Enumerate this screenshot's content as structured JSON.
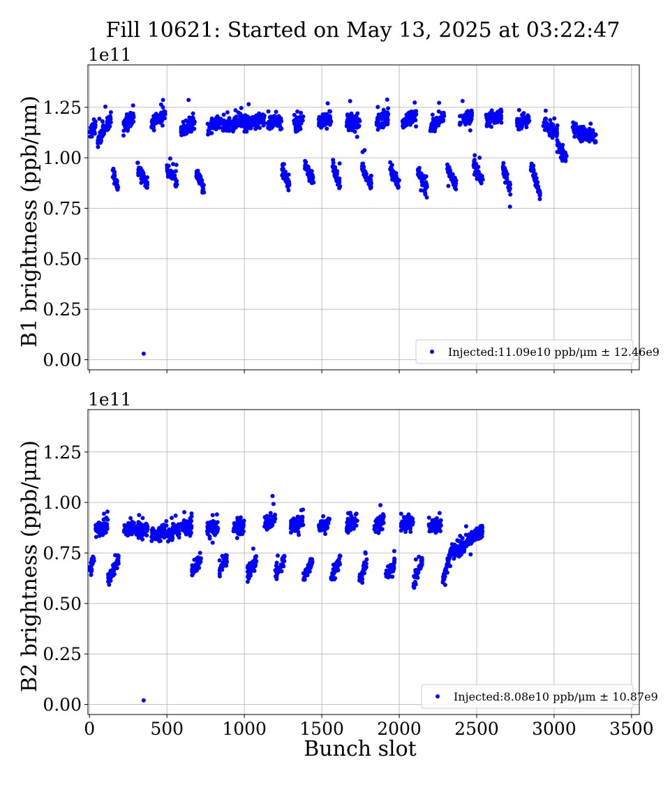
{
  "figure_title": "Fill 10621: Started on May 13, 2025 at 03:22:47",
  "chart_data": [
    {
      "type": "scatter",
      "ylabel": "B1 brightness (ppb/μm)",
      "offset_text": "1e11",
      "xlim": [
        -10,
        3550
      ],
      "ylim": [
        -0.05,
        1.46
      ],
      "y_ticks": [
        "0.00",
        "0.25",
        "0.50",
        "0.75",
        "1.00",
        "1.25"
      ],
      "y_tick_values": [
        0,
        0.25,
        0.5,
        0.75,
        1.0,
        1.25
      ],
      "x_ticks": [
        0,
        500,
        1000,
        1500,
        2000,
        2500,
        3000,
        3500
      ],
      "grid": true,
      "legend_location": "lower-right",
      "series": [
        {
          "legend": "Injected:11.09e10 ppb/μm ± 12.46e9",
          "color": "#0000ff",
          "outlier": [
            350,
            0.03
          ],
          "groups": [
            {
              "x": [
                0,
                40
              ],
              "y": [
                1.12,
                1.16
              ]
            },
            {
              "x": [
                50,
                140
              ],
              "y": [
                1.08,
                1.2
              ]
            },
            {
              "x": [
                150,
                185
              ],
              "y": [
                0.93,
                0.84
              ]
            },
            {
              "x": [
                220,
                290
              ],
              "y": [
                1.16,
                1.2
              ]
            },
            {
              "x": [
                310,
                375
              ],
              "y": [
                0.95,
                0.87
              ]
            },
            {
              "x": [
                400,
                490
              ],
              "y": [
                1.17,
                1.22
              ]
            },
            {
              "x": [
                500,
                565
              ],
              "y": [
                0.94,
                0.87
              ]
            },
            {
              "x": [
                590,
                680
              ],
              "y": [
                1.14,
                1.18
              ]
            },
            {
              "x": [
                690,
                740
              ],
              "y": [
                0.93,
                0.83
              ]
            },
            {
              "x": [
                760,
                850
              ],
              "y": [
                1.14,
                1.18
              ]
            },
            {
              "x": [
                860,
                990
              ],
              "y": [
                1.15,
                1.19
              ]
            },
            {
              "x": [
                1000,
                1130
              ],
              "y": [
                1.16,
                1.19
              ]
            },
            {
              "x": [
                1150,
                1240
              ],
              "y": [
                1.17,
                1.19
              ]
            },
            {
              "x": [
                1240,
                1290
              ],
              "y": [
                0.95,
                0.86
              ]
            },
            {
              "x": [
                1320,
                1380
              ],
              "y": [
                1.16,
                1.19
              ]
            },
            {
              "x": [
                1390,
                1450
              ],
              "y": [
                0.96,
                0.88
              ]
            },
            {
              "x": [
                1480,
                1560
              ],
              "y": [
                1.18,
                1.19
              ]
            },
            {
              "x": [
                1570,
                1620
              ],
              "y": [
                0.96,
                0.86
              ]
            },
            {
              "x": [
                1660,
                1750
              ],
              "y": [
                1.18,
                1.17
              ]
            },
            {
              "x": [
                1760,
                1820
              ],
              "y": [
                0.96,
                0.86
              ]
            },
            {
              "x": [
                1850,
                1930
              ],
              "y": [
                1.18,
                1.2
              ]
            },
            {
              "x": [
                1940,
                2000
              ],
              "y": [
                0.95,
                0.86
              ]
            },
            {
              "x": [
                2020,
                2110
              ],
              "y": [
                1.18,
                1.21
              ]
            },
            {
              "x": [
                2120,
                2180
              ],
              "y": [
                0.94,
                0.84
              ]
            },
            {
              "x": [
                2200,
                2290
              ],
              "y": [
                1.15,
                1.21
              ]
            },
            {
              "x": [
                2310,
                2370
              ],
              "y": [
                0.95,
                0.86
              ]
            },
            {
              "x": [
                2390,
                2470
              ],
              "y": [
                1.18,
                1.21
              ]
            },
            {
              "x": [
                2480,
                2540
              ],
              "y": [
                0.96,
                0.88
              ]
            },
            {
              "x": [
                2560,
                2660
              ],
              "y": [
                1.18,
                1.21
              ]
            },
            {
              "x": [
                2670,
                2720
              ],
              "y": [
                0.95,
                0.84
              ]
            },
            {
              "x": [
                2760,
                2840
              ],
              "y": [
                1.17,
                1.19
              ]
            },
            {
              "x": [
                2850,
                2910
              ],
              "y": [
                0.96,
                0.82
              ]
            },
            {
              "x": [
                2930,
                3020
              ],
              "y": [
                1.18,
                1.12
              ]
            },
            {
              "x": [
                3020,
                3080
              ],
              "y": [
                1.06,
                1.0
              ]
            },
            {
              "x": [
                3120,
                3190
              ],
              "y": [
                1.15,
                1.1
              ]
            },
            {
              "x": [
                3190,
                3270
              ],
              "y": [
                1.12,
                1.11
              ]
            }
          ]
        }
      ]
    },
    {
      "type": "scatter",
      "xlabel": "Bunch slot",
      "ylabel": "B2 brightness (ppb/μm)",
      "offset_text": "1e11",
      "xlim": [
        -10,
        3550
      ],
      "ylim": [
        -0.05,
        1.46
      ],
      "y_ticks": [
        "0.00",
        "0.25",
        "0.50",
        "0.75",
        "1.00",
        "1.25"
      ],
      "y_tick_values": [
        0,
        0.25,
        0.5,
        0.75,
        1.0,
        1.25
      ],
      "x_ticks": [
        0,
        500,
        1000,
        1500,
        2000,
        2500,
        3000,
        3500
      ],
      "x_tick_labels": [
        "0",
        "500",
        "1000",
        "1500",
        "2000",
        "2500",
        "3000",
        "3500"
      ],
      "grid": true,
      "legend_location": "lower-right",
      "series": [
        {
          "legend": "Injected:8.08e10 ppb/μm ± 10.87e9",
          "color": "#0000ff",
          "outlier": [
            350,
            0.02
          ],
          "groups": [
            {
              "x": [
                0,
                30
              ],
              "y": [
                0.68,
                0.72
              ]
            },
            {
              "x": [
                40,
                120
              ],
              "y": [
                0.86,
                0.88
              ]
            },
            {
              "x": [
                120,
                190
              ],
              "y": [
                0.62,
                0.72
              ]
            },
            {
              "x": [
                220,
                300
              ],
              "y": [
                0.86,
                0.88
              ]
            },
            {
              "x": [
                300,
                380
              ],
              "y": [
                0.85,
                0.88
              ]
            },
            {
              "x": [
                400,
                500
              ],
              "y": [
                0.84,
                0.86
              ]
            },
            {
              "x": [
                500,
                580
              ],
              "y": [
                0.84,
                0.87
              ]
            },
            {
              "x": [
                590,
                660
              ],
              "y": [
                0.87,
                0.89
              ]
            },
            {
              "x": [
                660,
                720
              ],
              "y": [
                0.66,
                0.72
              ]
            },
            {
              "x": [
                760,
                830
              ],
              "y": [
                0.86,
                0.88
              ]
            },
            {
              "x": [
                840,
                890
              ],
              "y": [
                0.66,
                0.72
              ]
            },
            {
              "x": [
                930,
                1000
              ],
              "y": [
                0.87,
                0.89
              ]
            },
            {
              "x": [
                1020,
                1080
              ],
              "y": [
                0.65,
                0.71
              ]
            },
            {
              "x": [
                1130,
                1200
              ],
              "y": [
                0.9,
                0.92
              ]
            },
            {
              "x": [
                1200,
                1260
              ],
              "y": [
                0.64,
                0.72
              ]
            },
            {
              "x": [
                1300,
                1380
              ],
              "y": [
                0.89,
                0.91
              ]
            },
            {
              "x": [
                1380,
                1440
              ],
              "y": [
                0.62,
                0.72
              ]
            },
            {
              "x": [
                1480,
                1550
              ],
              "y": [
                0.88,
                0.9
              ]
            },
            {
              "x": [
                1560,
                1620
              ],
              "y": [
                0.62,
                0.72
              ]
            },
            {
              "x": [
                1660,
                1730
              ],
              "y": [
                0.89,
                0.91
              ]
            },
            {
              "x": [
                1740,
                1790
              ],
              "y": [
                0.62,
                0.7
              ]
            },
            {
              "x": [
                1840,
                1900
              ],
              "y": [
                0.88,
                0.91
              ]
            },
            {
              "x": [
                1910,
                1970
              ],
              "y": [
                0.64,
                0.7
              ]
            },
            {
              "x": [
                2010,
                2090
              ],
              "y": [
                0.89,
                0.91
              ]
            },
            {
              "x": [
                2090,
                2150
              ],
              "y": [
                0.6,
                0.72
              ]
            },
            {
              "x": [
                2190,
                2270
              ],
              "y": [
                0.89,
                0.88
              ]
            },
            {
              "x": [
                2280,
                2330
              ],
              "y": [
                0.62,
                0.74
              ]
            },
            {
              "x": [
                2330,
                2400
              ],
              "y": [
                0.76,
                0.78
              ]
            },
            {
              "x": [
                2400,
                2450
              ],
              "y": [
                0.76,
                0.82
              ]
            },
            {
              "x": [
                2450,
                2540
              ],
              "y": [
                0.82,
                0.86
              ]
            }
          ]
        }
      ]
    }
  ]
}
